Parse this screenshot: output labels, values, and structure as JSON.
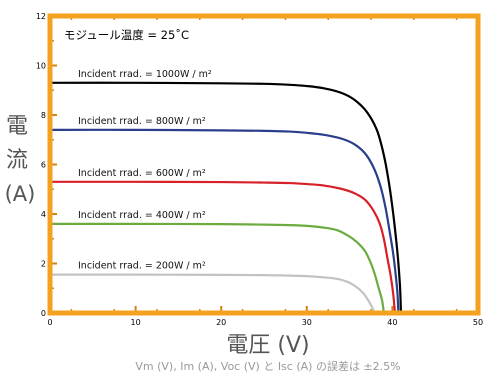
{
  "chart_data": {
    "type": "line",
    "title": "",
    "annotation_top": "モジュール温度 = 25˚C",
    "xlabel": "電圧 (V)",
    "ylabel_chars": [
      "電",
      "流",
      "(A)"
    ],
    "footnote": "Vm (V), Im (A), Voc (V) と Isc (A) の誤差は ±2.5%",
    "xlim": [
      0,
      50
    ],
    "ylim": [
      0,
      12
    ],
    "x_ticks": [
      0,
      10,
      20,
      30,
      40,
      50
    ],
    "x_tick_labels": [
      "0",
      "10",
      "20",
      "30",
      "40",
      "50"
    ],
    "y_ticks": [
      0,
      2,
      4,
      6,
      8,
      10,
      12
    ],
    "y_tick_labels": [
      "0",
      "2",
      "4",
      "6",
      "8",
      "10",
      "12"
    ],
    "grid": false,
    "frame_color": "#f4a11d",
    "tick_color": "#d18312",
    "series": [
      {
        "name": "Incident rrad. = 1000W / m²",
        "color": "#000000",
        "x": [
          0,
          10,
          20,
          25,
          28,
          30,
          32,
          34,
          35.5,
          37,
          38.2,
          39,
          39.6,
          40.1,
          40.5,
          40.7,
          40.9,
          41.0
        ],
        "y": [
          9.3,
          9.3,
          9.28,
          9.26,
          9.22,
          9.17,
          9.08,
          8.9,
          8.63,
          8.13,
          7.38,
          6.38,
          5.25,
          4.0,
          2.75,
          2.0,
          1.0,
          0
        ]
      },
      {
        "name": "Incident rrad. = 800W / m²",
        "color": "#2a3f8c",
        "x": [
          0,
          10,
          20,
          25,
          28,
          30,
          32,
          34,
          35.5,
          36.8,
          37.8,
          38.6,
          39.2,
          39.7,
          40.1,
          40.4,
          40.6,
          40.7
        ],
        "y": [
          7.4,
          7.4,
          7.38,
          7.36,
          7.33,
          7.28,
          7.2,
          7.05,
          6.83,
          6.45,
          5.88,
          5.13,
          4.25,
          3.25,
          2.38,
          1.5,
          0.75,
          0
        ]
      },
      {
        "name": "Incident rrad. = 600W / m²",
        "color": "#d72027",
        "x": [
          0,
          10,
          20,
          25,
          28,
          30,
          32,
          34,
          35.5,
          36.8,
          37.8,
          38.5,
          39.0,
          39.4,
          39.8,
          40.1,
          40.3
        ],
        "y": [
          5.3,
          5.3,
          5.29,
          5.27,
          5.25,
          5.21,
          5.15,
          5.02,
          4.85,
          4.58,
          4.13,
          3.63,
          3.0,
          2.25,
          1.5,
          0.75,
          0
        ]
      },
      {
        "name": "Incident rrad. = 400W / m²",
        "color": "#6cab3f",
        "x": [
          0,
          10,
          20,
          25,
          28,
          30,
          32,
          33.5,
          34.8,
          35.8,
          36.8,
          37.5,
          38.0,
          38.4,
          38.8,
          39.0
        ],
        "y": [
          3.6,
          3.6,
          3.59,
          3.57,
          3.55,
          3.52,
          3.45,
          3.35,
          3.13,
          2.88,
          2.5,
          2.0,
          1.5,
          1.0,
          0.5,
          0
        ]
      },
      {
        "name": "Incident rrad. = 200W / m²",
        "color": "#c2c2c2",
        "x": [
          0,
          10,
          20,
          25,
          28,
          30,
          32,
          33.5,
          34.8,
          35.8,
          36.6,
          37.2,
          37.6,
          37.9
        ],
        "y": [
          1.55,
          1.55,
          1.54,
          1.53,
          1.51,
          1.49,
          1.44,
          1.38,
          1.25,
          1.05,
          0.8,
          0.5,
          0.25,
          0
        ]
      }
    ]
  }
}
